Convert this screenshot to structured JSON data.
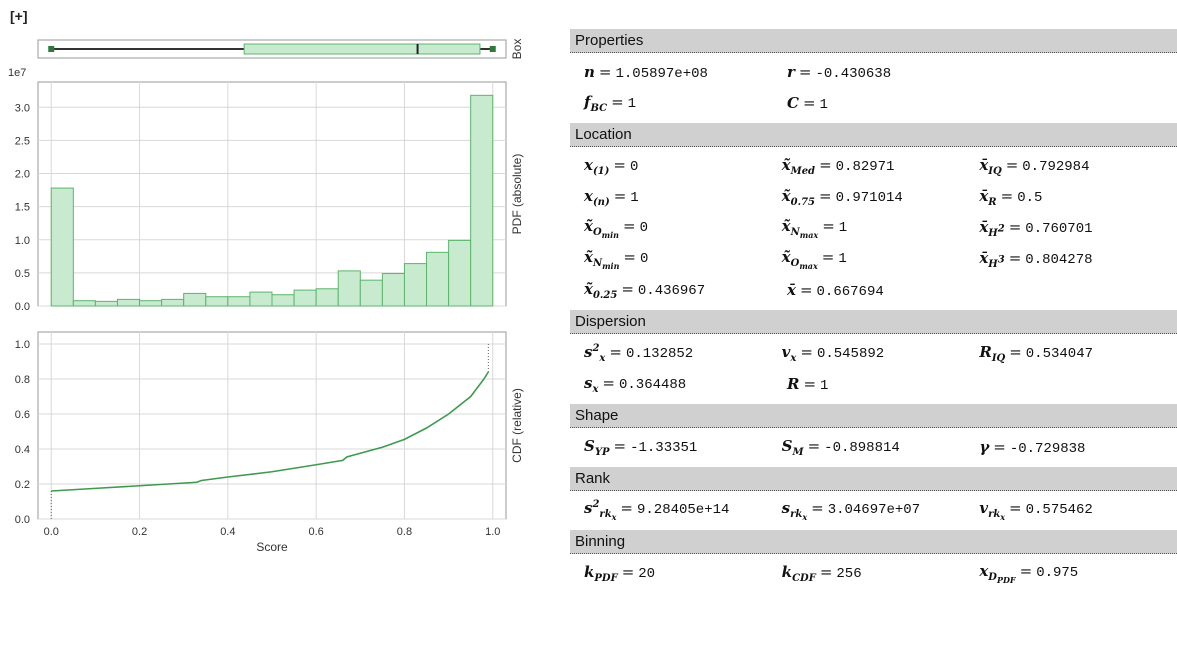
{
  "expand_label": "[+]",
  "colors": {
    "bar_fill": "#c8ebd0",
    "bar_stroke": "#5cb46c",
    "line": "#3f9a4f",
    "grid": "#d8d8d8",
    "frame": "#9a9a9a"
  },
  "chart_data": [
    {
      "type": "box",
      "side_label": "Box",
      "whisker_low": 0.0,
      "q1": 0.436967,
      "median": 0.82971,
      "q3": 0.971014,
      "whisker_high": 1.0
    },
    {
      "type": "bar",
      "side_label": "PDF (absolute)",
      "exponent_label": "1e7",
      "bin_width": 0.05,
      "x": [
        0.0,
        0.05,
        0.1,
        0.15,
        0.2,
        0.25,
        0.3,
        0.35,
        0.4,
        0.45,
        0.5,
        0.55,
        0.6,
        0.65,
        0.7,
        0.75,
        0.8,
        0.85,
        0.9,
        0.95
      ],
      "values": [
        1.78,
        0.08,
        0.07,
        0.1,
        0.08,
        0.1,
        0.19,
        0.14,
        0.14,
        0.21,
        0.17,
        0.24,
        0.26,
        0.53,
        0.39,
        0.49,
        0.64,
        0.81,
        0.99,
        3.18
      ],
      "ylim": [
        0,
        3.2
      ],
      "yticks": [
        "0.0",
        "0.5",
        "1.0",
        "1.5",
        "2.0",
        "2.5",
        "3.0"
      ],
      "xlim": [
        -0.03,
        1.03
      ],
      "grid": true
    },
    {
      "type": "line",
      "side_label": "CDF (relative)",
      "xlabel": "Score",
      "x": [
        0.0,
        0.1,
        0.2,
        0.33,
        0.34,
        0.4,
        0.5,
        0.6,
        0.66,
        0.67,
        0.75,
        0.8,
        0.85,
        0.9,
        0.95,
        0.98,
        0.99
      ],
      "y": [
        0.16,
        0.175,
        0.19,
        0.21,
        0.22,
        0.24,
        0.27,
        0.31,
        0.335,
        0.355,
        0.41,
        0.455,
        0.52,
        0.6,
        0.7,
        0.8,
        0.84
      ],
      "ylim": [
        0,
        1.0
      ],
      "yticks": [
        "0.0",
        "0.2",
        "0.4",
        "0.6",
        "0.8",
        "1.0"
      ],
      "xticks": [
        "0.0",
        "0.2",
        "0.4",
        "0.6",
        "0.8",
        "1.0"
      ],
      "xlim": [
        -0.03,
        1.03
      ],
      "grid": true
    }
  ],
  "sections": [
    {
      "title": "Properties",
      "rows": [
        [
          {
            "label": "n",
            "value": "1.05897e+08"
          },
          {
            "label": "r",
            "value": "-0.430638"
          }
        ],
        [
          {
            "label": "f",
            "sub": "BC",
            "value": "1"
          },
          {
            "label": "C",
            "value": "1"
          }
        ]
      ]
    },
    {
      "title": "Location",
      "rows": [
        [
          {
            "label": "x",
            "sub": "(1)",
            "value": "0"
          },
          {
            "label": "x̃",
            "sub": "Med",
            "value": "0.82971"
          },
          {
            "label": "x̄",
            "sub": "IQ",
            "value": "0.792984"
          }
        ],
        [
          {
            "label": "x",
            "sub": "(n)",
            "value": "1"
          },
          {
            "label": "x̃",
            "sub": "0.75",
            "value": "0.971014"
          },
          {
            "label": "x̄",
            "sub": "R",
            "value": "0.5"
          }
        ],
        [
          {
            "label": "x̃",
            "sub": "O",
            "subsub": "min",
            "value": "0"
          },
          {
            "label": "x̃",
            "sub": "N",
            "subsub": "max",
            "value": "1"
          },
          {
            "label": "x̄",
            "sub": "H",
            "subsup": "2",
            "value": "0.760701"
          }
        ],
        [
          {
            "label": "x̃",
            "sub": "N",
            "subsub": "min",
            "value": "0"
          },
          {
            "label": "x̃",
            "sub": "O",
            "subsub": "max",
            "value": "1"
          },
          {
            "label": "x̄",
            "sub": "H",
            "subsup": "3",
            "value": "0.804278"
          }
        ],
        [
          {
            "label": "x̃",
            "sub": "0.25",
            "value": "0.436967"
          },
          {
            "label": "x̄",
            "value": "0.667694"
          }
        ]
      ]
    },
    {
      "title": "Dispersion",
      "rows": [
        [
          {
            "label": "s",
            "sup": "2",
            "sub": "x",
            "value": "0.132852"
          },
          {
            "label": "v",
            "sub": "x",
            "value": "0.545892"
          },
          {
            "label": "R",
            "sub": "IQ",
            "value": "0.534047"
          }
        ],
        [
          {
            "label": "s",
            "sub": "x",
            "value": "0.364488"
          },
          {
            "label": "R",
            "value": "1"
          }
        ]
      ]
    },
    {
      "title": "Shape",
      "rows": [
        [
          {
            "label": "S",
            "sub": "YP",
            "value": "-1.33351"
          },
          {
            "label": "S",
            "sub": "M",
            "value": "-0.898814"
          },
          {
            "label": "γ",
            "value": "-0.729838"
          }
        ]
      ]
    },
    {
      "title": "Rank",
      "rows": [
        [
          {
            "label": "s",
            "sup": "2",
            "sub": "rk",
            "subsub": "x",
            "value": "9.28405e+14"
          },
          {
            "label": "s",
            "sub": "rk",
            "subsub": "x",
            "value": "3.04697e+07"
          },
          {
            "label": "v",
            "sub": "rk",
            "subsub": "x",
            "value": "0.575462"
          }
        ]
      ]
    },
    {
      "title": "Binning",
      "rows": [
        [
          {
            "label": "k",
            "sub": "PDF",
            "value": "20"
          },
          {
            "label": "k",
            "sub": "CDF",
            "value": "256"
          },
          {
            "label": "x",
            "sub": "D",
            "subsub": "PDF",
            "value": "0.975"
          }
        ]
      ]
    }
  ]
}
